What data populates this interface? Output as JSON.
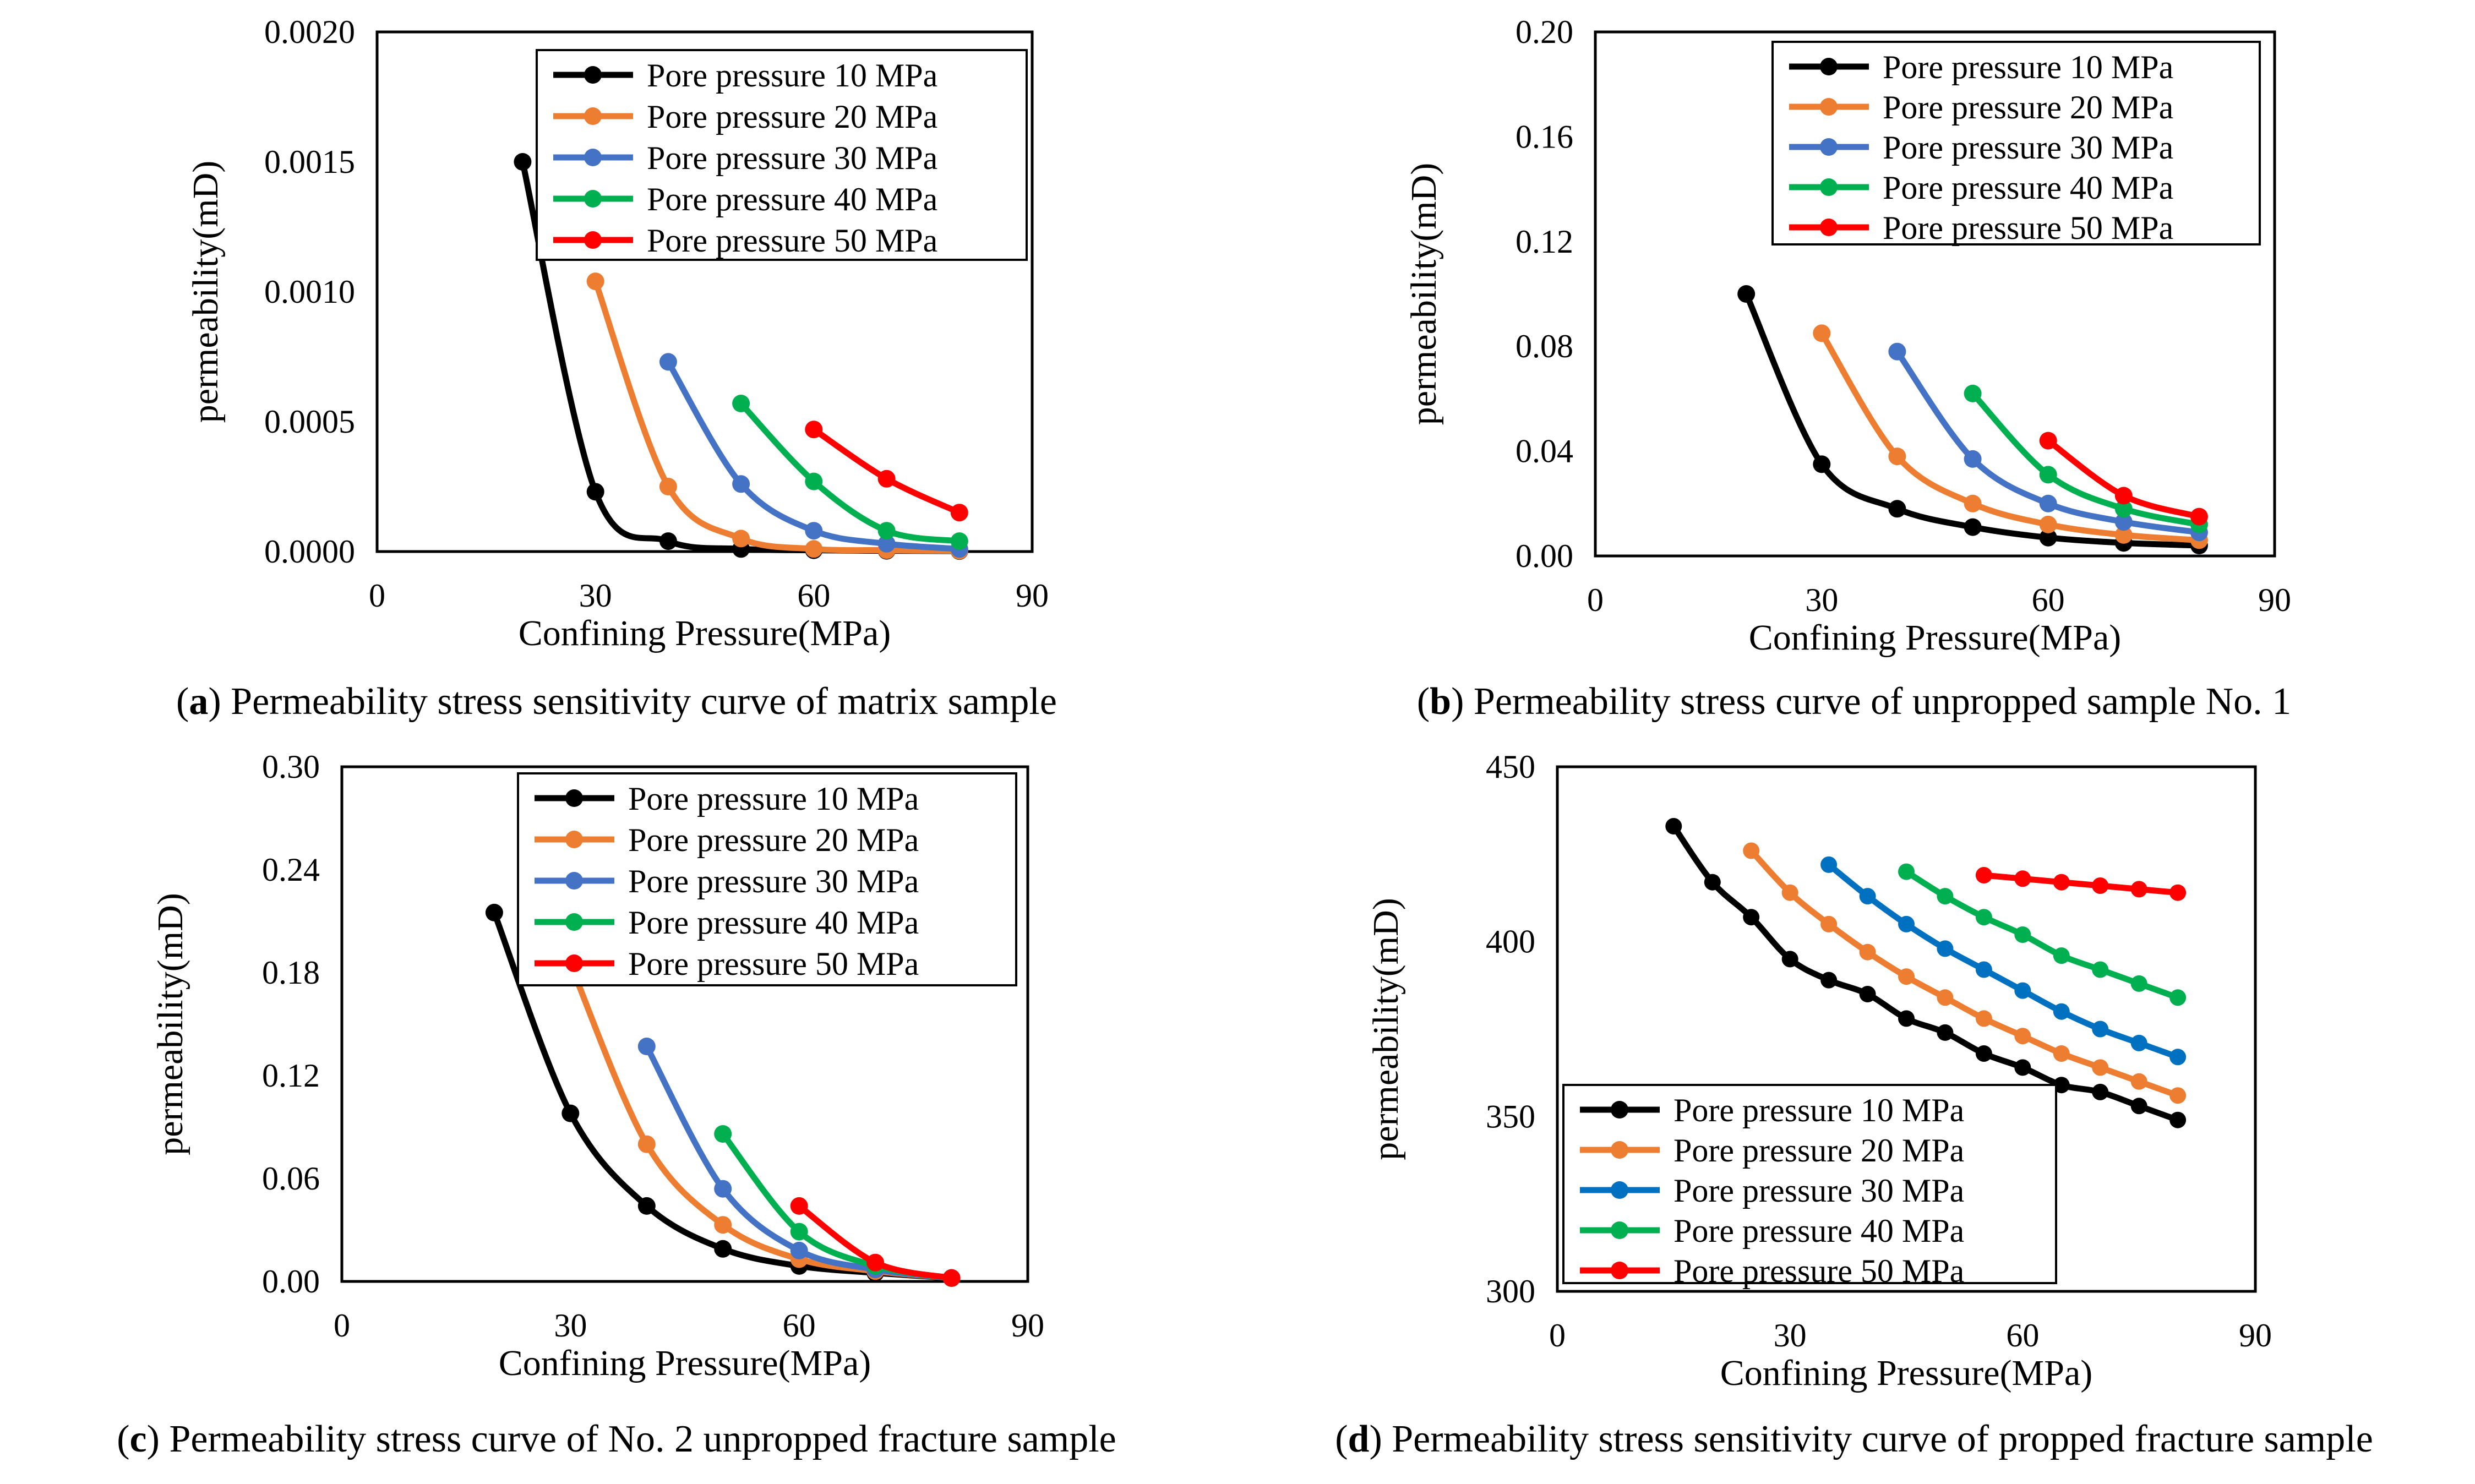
{
  "panels": [
    {
      "caption_letter": "a",
      "caption_text": " Permeability stress sensitivity curve of matrix sample"
    },
    {
      "caption_letter": "b",
      "caption_text": " Permeability stress curve of unpropped sample No. 1"
    },
    {
      "caption_letter": "c",
      "caption_text": " Permeability stress curve of No. 2 unpropped fracture sample"
    },
    {
      "caption_letter": "d",
      "caption_text": " Permeability stress sensitivity curve of propped fracture sample"
    }
  ],
  "chart_data": [
    {
      "type": "line",
      "xlabel": "Confining Pressure(MPa)",
      "ylabel": "permeability(mD)",
      "xlim": [
        0,
        90
      ],
      "ylim": [
        0,
        0.002
      ],
      "xticks": [
        "0",
        "30",
        "60",
        "90"
      ],
      "yticks": [
        "0.0000",
        "0.0005",
        "0.0010",
        "0.0015",
        "0.0020"
      ],
      "legend_position": "top-right",
      "grid": false,
      "series": [
        {
          "name": "Pore pressure 10 MPa",
          "color": "#000000",
          "x": [
            20,
            30,
            40,
            50,
            60,
            70,
            80
          ],
          "y": [
            0.0015,
            0.00023,
            4e-05,
            1e-05,
            5e-06,
            3e-06,
            2e-06
          ]
        },
        {
          "name": "Pore pressure 20 MPa",
          "color": "#ED7D31",
          "x": [
            30,
            40,
            50,
            60,
            70,
            80
          ],
          "y": [
            0.00104,
            0.00025,
            5e-05,
            1e-05,
            5e-06,
            3e-06
          ]
        },
        {
          "name": "Pore pressure 30 MPa",
          "color": "#4472C4",
          "x": [
            40,
            50,
            60,
            70,
            80
          ],
          "y": [
            0.00073,
            0.00026,
            8e-05,
            3e-05,
            1e-05
          ]
        },
        {
          "name": "Pore pressure 40 MPa",
          "color": "#00B050",
          "x": [
            50,
            60,
            70,
            80
          ],
          "y": [
            0.00057,
            0.00027,
            8e-05,
            4e-05
          ]
        },
        {
          "name": "Pore pressure 50 MPa",
          "color": "#FF0000",
          "x": [
            60,
            70,
            80
          ],
          "y": [
            0.00047,
            0.00028,
            0.00015
          ]
        }
      ]
    },
    {
      "type": "line",
      "xlabel": "Confining Pressure(MPa)",
      "ylabel": "permeability(mD)",
      "xlim": [
        0,
        90
      ],
      "ylim": [
        0,
        0.2
      ],
      "xticks": [
        "0",
        "30",
        "60",
        "90"
      ],
      "yticks": [
        "0.00",
        "0.04",
        "0.08",
        "0.12",
        "0.16",
        "0.20"
      ],
      "legend_position": "top-right",
      "grid": false,
      "series": [
        {
          "name": "Pore pressure 10 MPa",
          "color": "#000000",
          "x": [
            20,
            30,
            40,
            50,
            60,
            70,
            80
          ],
          "y": [
            0.1,
            0.035,
            0.018,
            0.011,
            0.007,
            0.005,
            0.004
          ]
        },
        {
          "name": "Pore pressure 20 MPa",
          "color": "#ED7D31",
          "x": [
            30,
            40,
            50,
            60,
            70,
            80
          ],
          "y": [
            0.085,
            0.038,
            0.02,
            0.012,
            0.008,
            0.006
          ]
        },
        {
          "name": "Pore pressure 30 MPa",
          "color": "#4472C4",
          "x": [
            40,
            50,
            60,
            70,
            80
          ],
          "y": [
            0.078,
            0.037,
            0.02,
            0.013,
            0.009
          ]
        },
        {
          "name": "Pore pressure 40 MPa",
          "color": "#00B050",
          "x": [
            50,
            60,
            70,
            80
          ],
          "y": [
            0.062,
            0.031,
            0.018,
            0.012
          ]
        },
        {
          "name": "Pore pressure 50 MPa",
          "color": "#FF0000",
          "x": [
            60,
            70,
            80
          ],
          "y": [
            0.044,
            0.023,
            0.015
          ]
        }
      ]
    },
    {
      "type": "line",
      "xlabel": "Confining Pressure(MPa)",
      "ylabel": "permeability(mD)",
      "xlim": [
        0,
        90
      ],
      "ylim": [
        0,
        0.3
      ],
      "xticks": [
        "0",
        "30",
        "60",
        "90"
      ],
      "yticks": [
        "0.00",
        "0.06",
        "0.12",
        "0.18",
        "0.24",
        "0.30"
      ],
      "legend_position": "top-right",
      "grid": false,
      "series": [
        {
          "name": "Pore pressure 10 MPa",
          "color": "#000000",
          "x": [
            20,
            30,
            40,
            50,
            60,
            70,
            80
          ],
          "y": [
            0.215,
            0.098,
            0.044,
            0.019,
            0.009,
            0.005,
            0.002
          ]
        },
        {
          "name": "Pore pressure 20 MPa",
          "color": "#ED7D31",
          "x": [
            30,
            40,
            50,
            60,
            70,
            80
          ],
          "y": [
            0.185,
            0.08,
            0.033,
            0.013,
            0.006,
            0.002
          ]
        },
        {
          "name": "Pore pressure 30 MPa",
          "color": "#4472C4",
          "x": [
            40,
            50,
            60,
            70,
            80
          ],
          "y": [
            0.137,
            0.054,
            0.018,
            0.007,
            0.002
          ]
        },
        {
          "name": "Pore pressure 40 MPa",
          "color": "#00B050",
          "x": [
            50,
            60,
            70,
            80
          ],
          "y": [
            0.086,
            0.029,
            0.009,
            0.002
          ]
        },
        {
          "name": "Pore pressure 50 MPa",
          "color": "#FF0000",
          "x": [
            60,
            70,
            80
          ],
          "y": [
            0.044,
            0.011,
            0.002
          ]
        }
      ]
    },
    {
      "type": "line",
      "xlabel": "Confining Pressure(MPa)",
      "ylabel": "permeability(mD)",
      "xlim": [
        0,
        90
      ],
      "ylim": [
        300,
        450
      ],
      "xticks": [
        "0",
        "30",
        "60",
        "90"
      ],
      "yticks": [
        "300",
        "350",
        "400",
        "450"
      ],
      "legend_position": "bottom-left",
      "grid": false,
      "series": [
        {
          "name": "Pore pressure 10 MPa",
          "color": "#000000",
          "x": [
            15,
            20,
            25,
            30,
            35,
            40,
            45,
            50,
            55,
            60,
            65,
            70,
            75,
            80
          ],
          "y": [
            433,
            417,
            407,
            395,
            389,
            385,
            378,
            374,
            368,
            364,
            359,
            357,
            353,
            349
          ]
        },
        {
          "name": "Pore pressure 20 MPa",
          "color": "#ED7D31",
          "x": [
            25,
            30,
            35,
            40,
            45,
            50,
            55,
            60,
            65,
            70,
            75,
            80
          ],
          "y": [
            426,
            414,
            405,
            397,
            390,
            384,
            378,
            373,
            368,
            364,
            360,
            356
          ]
        },
        {
          "name": "Pore pressure 30 MPa",
          "color": "#0070C0",
          "x": [
            35,
            40,
            45,
            50,
            55,
            60,
            65,
            70,
            75,
            80
          ],
          "y": [
            422,
            413,
            405,
            398,
            392,
            386,
            380,
            375,
            371,
            367
          ]
        },
        {
          "name": "Pore pressure 40 MPa",
          "color": "#00B050",
          "x": [
            45,
            50,
            55,
            60,
            65,
            70,
            75,
            80
          ],
          "y": [
            420,
            413,
            407,
            402,
            396,
            392,
            388,
            384
          ]
        },
        {
          "name": "Pore pressure 50 MPa",
          "color": "#FF0000",
          "x": [
            55,
            60,
            65,
            70,
            75,
            80
          ],
          "y": [
            419,
            418,
            417,
            416,
            415,
            414
          ]
        }
      ]
    }
  ]
}
